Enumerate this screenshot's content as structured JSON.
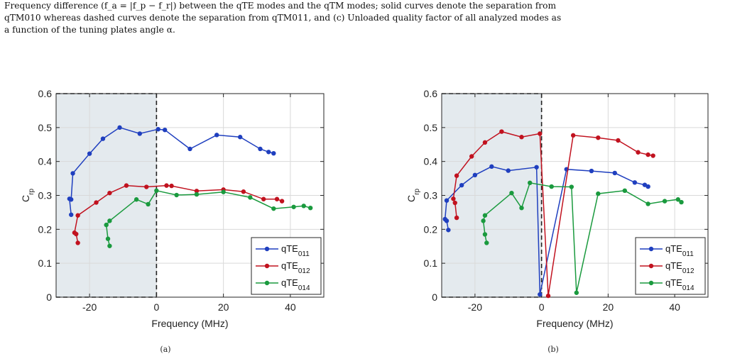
{
  "caption": {
    "line1": "Frequency difference (f_a = |f_p − f_r|) between the qTE modes and the qTM modes; solid curves denote the separation from",
    "line2": "qTM010 whereas dashed curves denote the separation from qTM011, and (c) Unloaded quality factor of all analyzed modes as",
    "line3": "a function of the tuning plates angle α."
  },
  "colors": {
    "qTE011": "#1f3fbf",
    "qTE012": "#c1121f",
    "qTE014": "#1a9a3e",
    "shade": "#e4eaee"
  },
  "chart_data": [
    {
      "type": "line",
      "panel_label": "(a)",
      "xlabel": "Frequency (MHz)",
      "ylabel": "C",
      "ylabel_sub": "rp",
      "xlim": [
        -30,
        50
      ],
      "ylim": [
        0,
        0.6
      ],
      "xticks": [
        -20,
        0,
        20,
        40
      ],
      "xtick_labels": [
        "-20",
        "0",
        "20",
        "40"
      ],
      "yticks": [
        0,
        0.1,
        0.2,
        0.3,
        0.4,
        0.5,
        0.6
      ],
      "ytick_labels": [
        "0",
        "0.1",
        "0.2",
        "0.3",
        "0.4",
        "0.5",
        "0.6"
      ],
      "shaded_region_x": [
        -30,
        0
      ],
      "grid": true,
      "legend_position": "bottom-right",
      "series": [
        {
          "name": "qTE",
          "sub": "011",
          "color": "#1f3fbf",
          "x": [
            -25.5,
            -26,
            -25.5,
            -25,
            -20,
            -16,
            -11,
            -5,
            0.5,
            2.5,
            10,
            18,
            25,
            31,
            33.5,
            35
          ],
          "y": [
            0.243,
            0.29,
            0.288,
            0.365,
            0.423,
            0.467,
            0.5,
            0.482,
            0.495,
            0.493,
            0.437,
            0.478,
            0.472,
            0.437,
            0.428,
            0.424
          ]
        },
        {
          "name": "qTE",
          "sub": "012",
          "color": "#c1121f",
          "x": [
            -23.5,
            -24,
            -24.5,
            -23.5,
            -18,
            -14,
            -9,
            -3,
            3,
            4.5,
            12,
            20,
            26,
            32,
            36,
            37.5
          ],
          "y": [
            0.16,
            0.186,
            0.19,
            0.241,
            0.279,
            0.307,
            0.329,
            0.325,
            0.329,
            0.328,
            0.313,
            0.317,
            0.311,
            0.289,
            0.289,
            0.283
          ]
        },
        {
          "name": "qTE",
          "sub": "014",
          "color": "#1a9a3e",
          "x": [
            -14,
            -14.5,
            -15,
            -14,
            -6,
            -2.5,
            0,
            6,
            12,
            20,
            28,
            35,
            41,
            44,
            46
          ],
          "y": [
            0.151,
            0.172,
            0.213,
            0.225,
            0.288,
            0.274,
            0.314,
            0.301,
            0.303,
            0.31,
            0.294,
            0.261,
            0.266,
            0.269,
            0.263
          ]
        }
      ]
    },
    {
      "type": "line",
      "panel_label": "(b)",
      "xlabel": "Frequency (MHz)",
      "ylabel": "C",
      "ylabel_sub": "rp",
      "xlim": [
        -30,
        50
      ],
      "ylim": [
        0,
        0.6
      ],
      "xticks": [
        -20,
        0,
        20,
        40
      ],
      "xtick_labels": [
        "-20",
        "0",
        "20",
        "40"
      ],
      "yticks": [
        0,
        0.1,
        0.2,
        0.3,
        0.4,
        0.5,
        0.6
      ],
      "ytick_labels": [
        "0",
        "0.1",
        "0.2",
        "0.3",
        "0.4",
        "0.5",
        "0.6"
      ],
      "shaded_region_x": [
        -30,
        0
      ],
      "grid": true,
      "legend_position": "bottom-right",
      "series": [
        {
          "name": "qTE",
          "sub": "011",
          "color": "#1f3fbf",
          "x": [
            -28,
            -28.5,
            -29,
            -28.5,
            -24,
            -20,
            -15,
            -10,
            -1.5,
            -0.5,
            7.5,
            15,
            22,
            28,
            31,
            32
          ],
          "y": [
            0.198,
            0.225,
            0.23,
            0.285,
            0.33,
            0.36,
            0.385,
            0.373,
            0.383,
            0.008,
            0.377,
            0.372,
            0.366,
            0.338,
            0.331,
            0.326
          ]
        },
        {
          "name": "qTE",
          "sub": "012",
          "color": "#c1121f",
          "x": [
            -25.5,
            -26,
            -26.5,
            -25.5,
            -21,
            -17,
            -12,
            -6,
            -0.5,
            2,
            9.5,
            17,
            23,
            29,
            32,
            33.5
          ],
          "y": [
            0.234,
            0.278,
            0.29,
            0.358,
            0.415,
            0.456,
            0.488,
            0.472,
            0.482,
            0.004,
            0.477,
            0.47,
            0.462,
            0.427,
            0.42,
            0.417
          ]
        },
        {
          "name": "qTE",
          "sub": "014",
          "color": "#1a9a3e",
          "x": [
            -16.5,
            -17,
            -17.5,
            -17,
            -9,
            -6,
            -3.5,
            3,
            9,
            10.5,
            17,
            25,
            32,
            37,
            41,
            42
          ],
          "y": [
            0.16,
            0.185,
            0.225,
            0.241,
            0.307,
            0.263,
            0.337,
            0.326,
            0.325,
            0.013,
            0.305,
            0.314,
            0.275,
            0.283,
            0.288,
            0.28
          ]
        }
      ]
    }
  ]
}
